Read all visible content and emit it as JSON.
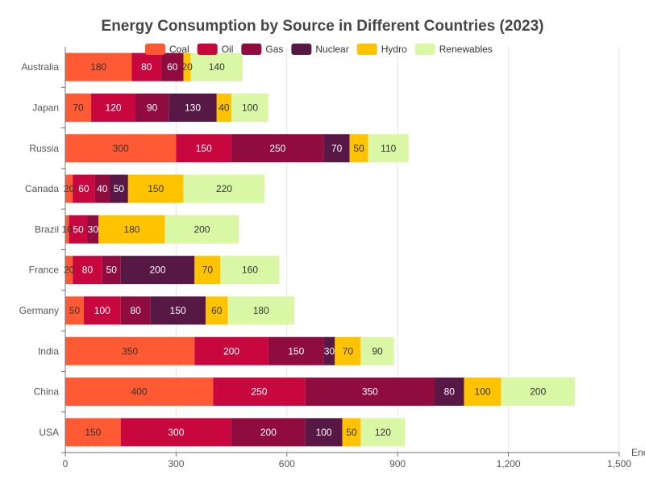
{
  "chart_data": {
    "type": "bar",
    "orientation": "horizontal",
    "stacked": true,
    "title": "Energy Consumption by Source in Different Countries (2023)",
    "xlabel": "Ene",
    "ylabel": "",
    "xlim": [
      0,
      1500
    ],
    "xticks": [
      "0",
      "300",
      "600",
      "900",
      "1,200",
      "1,500"
    ],
    "xtick_values": [
      0,
      300,
      600,
      900,
      1200,
      1500
    ],
    "grid": true,
    "legend_position": "top",
    "categories": [
      "USA",
      "China",
      "India",
      "Germany",
      "France",
      "Brazil",
      "Canada",
      "Russia",
      "Japan",
      "Australia"
    ],
    "series": [
      {
        "name": "Coal",
        "color": "#ff5a33",
        "label_color": "#333333",
        "values": [
          150,
          400,
          350,
          50,
          20,
          10,
          20,
          300,
          70,
          180
        ]
      },
      {
        "name": "Oil",
        "color": "#c9073f",
        "label_color": "#ffffff",
        "values": [
          300,
          250,
          200,
          100,
          80,
          50,
          60,
          150,
          120,
          80
        ]
      },
      {
        "name": "Gas",
        "color": "#900c3f",
        "label_color": "#ffffff",
        "values": [
          200,
          350,
          150,
          80,
          50,
          30,
          40,
          250,
          90,
          60
        ]
      },
      {
        "name": "Nuclear",
        "color": "#581845",
        "label_color": "#ffffff",
        "values": [
          100,
          80,
          30,
          150,
          200,
          0,
          50,
          70,
          130,
          0
        ]
      },
      {
        "name": "Hydro",
        "color": "#ffc300",
        "label_color": "#333333",
        "values": [
          50,
          100,
          70,
          60,
          70,
          180,
          150,
          50,
          40,
          20
        ]
      },
      {
        "name": "Renewables",
        "color": "#daf7a6",
        "label_color": "#333333",
        "values": [
          120,
          200,
          90,
          180,
          160,
          200,
          220,
          110,
          100,
          140
        ]
      }
    ]
  }
}
